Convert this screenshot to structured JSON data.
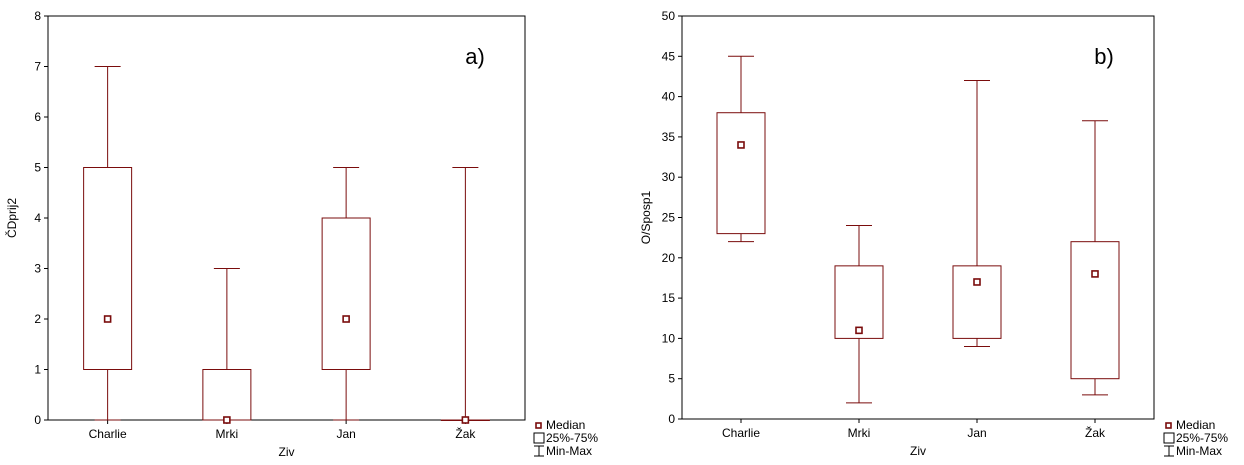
{
  "chart_data": [
    {
      "type": "box",
      "panel_label": "a)",
      "xlabel": "Ziv",
      "ylabel": "ČDprij2",
      "ylim": [
        0,
        8
      ],
      "yticks": [
        0,
        1,
        2,
        3,
        4,
        5,
        6,
        7,
        8
      ],
      "grid": false,
      "categories": [
        "Charlie",
        "Mrki",
        "Jan",
        "Žak"
      ],
      "median": [
        2,
        0,
        2,
        0
      ],
      "q1": [
        1,
        0,
        1,
        0
      ],
      "q3": [
        5,
        1,
        4,
        0
      ],
      "min": [
        0,
        0,
        0,
        0
      ],
      "max": [
        7,
        3,
        5,
        5
      ],
      "legend_placement": "bottom-right-outside"
    },
    {
      "type": "box",
      "panel_label": "b)",
      "xlabel": "Ziv",
      "ylabel": "O/Sposp1",
      "ylim": [
        0,
        50
      ],
      "yticks": [
        0,
        5,
        10,
        15,
        20,
        25,
        30,
        35,
        40,
        45,
        50
      ],
      "grid": false,
      "categories": [
        "Charlie",
        "Mrki",
        "Jan",
        "Žak"
      ],
      "median": [
        34,
        11,
        17,
        18
      ],
      "q1": [
        23,
        10,
        10,
        5
      ],
      "q3": [
        38,
        19,
        19,
        22
      ],
      "min": [
        22,
        2,
        9,
        3
      ],
      "max": [
        45,
        24,
        42,
        37
      ],
      "legend_placement": "bottom-right-outside"
    }
  ],
  "legend": {
    "median": "Median",
    "box": "25%-75%",
    "whisker": "Min-Max"
  },
  "colors": {
    "series": "#7a0c0c",
    "axis": "#000000"
  }
}
